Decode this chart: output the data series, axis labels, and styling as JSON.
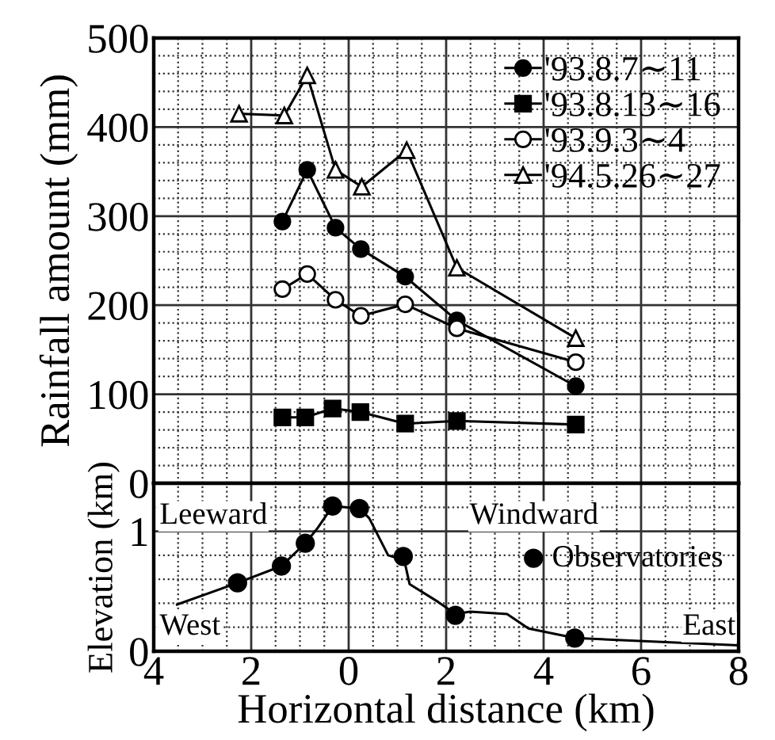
{
  "chart_data": [
    {
      "type": "line",
      "ylabel": "Rainfall amount (mm)",
      "xlim": [
        -4,
        8
      ],
      "ylim": [
        0,
        500
      ],
      "yticks": [
        0,
        100,
        200,
        300,
        400,
        500
      ],
      "tick_labels": "y",
      "grid": true,
      "legend": "top right",
      "series": [
        {
          "name": "'93.8.7∼11",
          "color": "#000000",
          "marker": "circle",
          "x": [
            -1.36,
            -0.85,
            -0.27,
            0.25,
            1.16,
            2.22,
            4.66
          ],
          "values": [
            294,
            352,
            287,
            263,
            232,
            183,
            109
          ]
        },
        {
          "name": "'93.8.13∼16",
          "color": "#000000",
          "marker": "square",
          "x": [
            -1.36,
            -0.89,
            -0.33,
            0.24,
            1.16,
            2.22,
            4.66
          ],
          "values": [
            74,
            74,
            84,
            80,
            67,
            70,
            66
          ]
        },
        {
          "name": "'93.9.3∼4",
          "color": "#ffffff",
          "marker": "circle",
          "x": [
            -1.36,
            -0.85,
            -0.27,
            0.25,
            1.16,
            2.22,
            4.66
          ],
          "values": [
            218,
            235,
            206,
            188,
            201,
            174,
            136
          ]
        },
        {
          "name": "'94.5.26∼27",
          "color": "#ffffff",
          "marker": "triangle",
          "x": [
            -2.25,
            -1.32,
            -0.85,
            -0.27,
            0.27,
            1.19,
            2.22,
            4.66
          ],
          "values": [
            415,
            413,
            458,
            352,
            333,
            374,
            242,
            163
          ]
        }
      ]
    },
    {
      "type": "line",
      "xlabel": "Horizontal distance (km)",
      "ylabel": "Elevation (km)",
      "xlim": [
        -4,
        8
      ],
      "xticks": [
        {
          "value": -4,
          "label": "4"
        },
        {
          "value": -2,
          "label": "2"
        },
        0,
        2,
        4,
        6,
        8
      ],
      "ylim": [
        0,
        1.4
      ],
      "yticks": [
        0,
        1
      ],
      "grid": true,
      "legend": "right",
      "annotations": [
        "Leeward",
        "Windward",
        "West",
        "East"
      ],
      "series": [
        {
          "type": "line",
          "color": "#000000",
          "marker": "none",
          "x": [
            -3.52,
            -2.28,
            -1.38,
            -0.89,
            -0.65,
            -0.33,
            0.22,
            0.42,
            0.81,
            1.14,
            1.25,
            1.84,
            2.19,
            2.49,
            3.25,
            3.69,
            4.64,
            7.97
          ],
          "values": [
            0.39,
            0.57,
            0.71,
            0.9,
            1.02,
            1.21,
            1.19,
            1.11,
            0.8,
            0.76,
            0.56,
            0.41,
            0.31,
            0.33,
            0.31,
            0.19,
            0.11,
            0.05
          ]
        },
        {
          "type": "scatter",
          "name": "Observatories",
          "color": "#000000",
          "marker": "circle",
          "x": [
            -2.28,
            -1.38,
            -0.89,
            -0.33,
            0.22,
            1.12,
            2.19,
            4.64
          ],
          "values": [
            0.57,
            0.71,
            0.9,
            1.21,
            1.19,
            0.79,
            0.3,
            0.11
          ]
        }
      ]
    }
  ]
}
